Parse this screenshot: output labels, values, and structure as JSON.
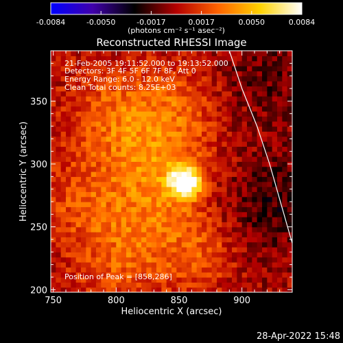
{
  "chart_data": {
    "type": "heatmap",
    "title": "Reconstructed RHESSI Image",
    "xlabel": "Heliocentric X (arcsec)",
    "ylabel": "Heliocentric Y (arcsec)",
    "xlim": [
      748,
      940
    ],
    "ylim": [
      198,
      390
    ],
    "xticks": [
      750,
      800,
      850,
      900
    ],
    "yticks": [
      200,
      250,
      300,
      350
    ],
    "colorbar": {
      "label": "(photons cm⁻² s⁻¹ asec⁻²)",
      "range": [
        -0.0084,
        0.0084
      ],
      "ticks": [
        "-0.0084",
        "-0.0050",
        "-0.0017",
        "0.0017",
        "0.0050",
        "0.0084"
      ],
      "colormap": [
        "#0000ff",
        "#4000aa",
        "#000000",
        "#b40000",
        "#ff6400",
        "#ffd200",
        "#ffffff"
      ]
    },
    "info_lines": [
      "21-Feb-2005 19:11:52.000 to 19:13:52.000",
      "Detectors: 3F 4F 5F 6F 7F 8F, Att 0",
      "Energy Range: 6.0 - 12.0 keV",
      "Clean    Total counts: 8.25E+03"
    ],
    "peak_label": "Position of Peak = [858,286]",
    "peak": [
      858,
      286
    ],
    "peak_value": 0.0084,
    "limb_curve": [
      [
        890,
        390
      ],
      [
        900,
        360
      ],
      [
        912,
        330
      ],
      [
        922,
        300
      ],
      [
        932,
        265
      ],
      [
        940,
        237
      ]
    ],
    "limb_color": "#ffffff",
    "sources": [
      {
        "x": 855,
        "y": 286,
        "amp": 0.0084,
        "sigma": 9
      },
      {
        "x": 835,
        "y": 300,
        "amp": 0.003,
        "sigma": 30
      },
      {
        "x": 800,
        "y": 340,
        "amp": 0.0025,
        "sigma": 28
      },
      {
        "x": 820,
        "y": 240,
        "amp": 0.0026,
        "sigma": 30
      },
      {
        "x": 770,
        "y": 270,
        "amp": 0.0018,
        "sigma": 25
      },
      {
        "x": 870,
        "y": 230,
        "amp": 0.0018,
        "sigma": 20
      },
      {
        "x": 850,
        "y": 350,
        "amp": 0.0016,
        "sigma": 22
      },
      {
        "x": 790,
        "y": 210,
        "amp": 0.001,
        "sigma": 20
      },
      {
        "x": 925,
        "y": 270,
        "amp": -0.002,
        "sigma": 30
      },
      {
        "x": 920,
        "y": 370,
        "amp": -0.0015,
        "sigma": 25
      }
    ]
  },
  "footer": {
    "timestamp": "28-Apr-2022 15:48"
  }
}
